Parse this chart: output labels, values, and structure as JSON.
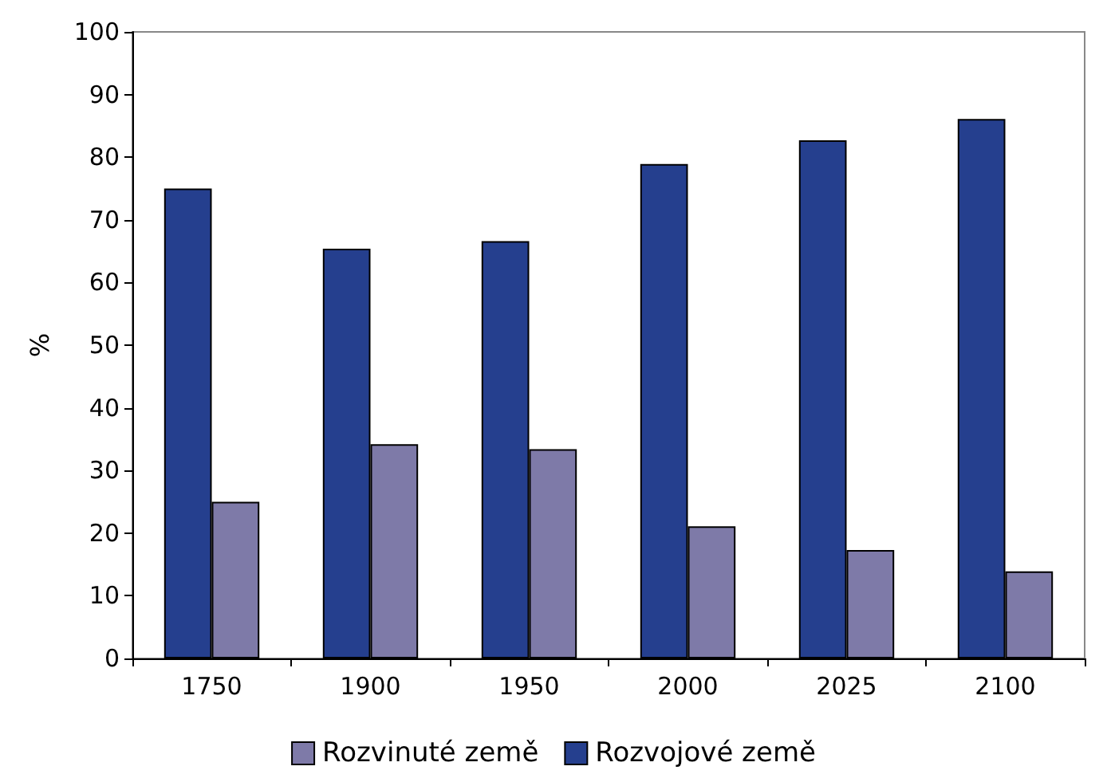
{
  "chart_data": {
    "type": "bar",
    "ylabel": "%",
    "categories": [
      "1750",
      "1900",
      "1950",
      "2000",
      "2025",
      "2100"
    ],
    "series": [
      {
        "name": "Rozvojové země",
        "color": "#253f8e",
        "values": [
          75,
          65.4,
          66.6,
          78.9,
          82.7,
          86.1
        ]
      },
      {
        "name": "Rozvinuté země",
        "color": "#7e7aa8",
        "values": [
          25,
          34.2,
          33.4,
          21.1,
          17.3,
          13.9
        ]
      }
    ],
    "ylim": [
      0,
      100
    ],
    "yticks": [
      0,
      10,
      20,
      30,
      40,
      50,
      60,
      70,
      80,
      90,
      100
    ],
    "grid": false,
    "legend": "bottom"
  }
}
